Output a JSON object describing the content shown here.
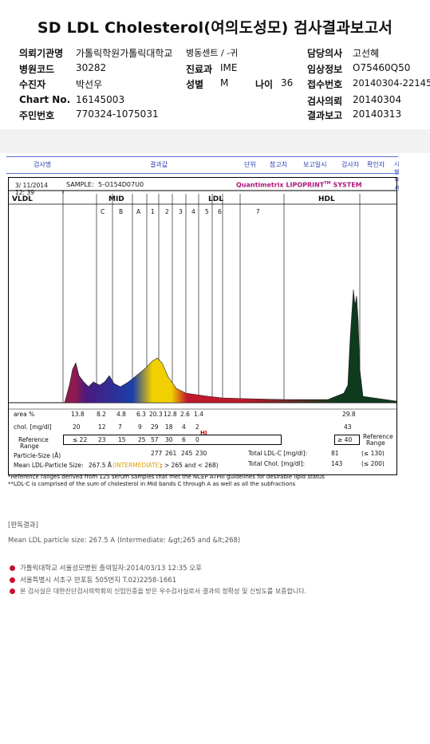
{
  "title": "SD LDL Cholesterol(여의도성모) 검사결과보고서",
  "header": {
    "left": [
      {
        "label": "의뢰기관명",
        "value": "가톨릭학원가톨릭대학교"
      },
      {
        "label": "병원코드",
        "value": "30282"
      },
      {
        "label": "수진자",
        "value": "박선우"
      },
      {
        "label": "Chart No.",
        "value": "16145003"
      },
      {
        "label": "주민번호",
        "value": "770324-1075031"
      }
    ],
    "dept": {
      "label": "병동센트 / -귀"
    },
    "clinic": {
      "label": "진료과",
      "value": "IME"
    },
    "gender": {
      "label": "성별",
      "value": "M"
    },
    "age": {
      "label": "나이",
      "value": "36"
    },
    "right": [
      {
        "label": "담당의사",
        "value": "고선혜"
      },
      {
        "label": "임상정보",
        "value": "O75460Q50"
      },
      {
        "label": "접수번호",
        "value": "20140304-22145"
      },
      {
        "label": "검사의뢰",
        "value": "20140304"
      },
      {
        "label": "결과보고",
        "value": "20140313"
      }
    ]
  },
  "report_header": [
    "검사명",
    "결과값",
    "단위",
    "참고치",
    "보고일시",
    "검사자",
    "확인자",
    "시행부서"
  ],
  "sample": {
    "date": "3/ 11/2014",
    "time": "12: 39",
    "sample_label": "SAMPLE:",
    "sample_id": "5-O154D07U0",
    "brand": "Quantimetrix LIPOPRINT",
    "brand_sup": "TM",
    "brand_tail": " SYSTEM"
  },
  "band_groups": {
    "vldl": "VLDL",
    "mid": "MID",
    "ldl": "LDL",
    "hdl": "HDL"
  },
  "band_labels": [
    "C",
    "B",
    "A",
    "1",
    "2",
    "3",
    "4",
    "5",
    "6",
    "7"
  ],
  "rows": {
    "area": {
      "label": "area %",
      "values": [
        "13.8",
        "8.2",
        "4.8",
        "6.3",
        "20.3",
        "12.8",
        "2.6",
        "1.4",
        "29.8"
      ]
    },
    "chol": {
      "label": "chol. [mg/dl]",
      "values": [
        "20",
        "12",
        "7",
        "9",
        "29",
        "18",
        "4",
        "2",
        "43"
      ],
      "flag": "HI"
    },
    "ref": {
      "label1": "Reference",
      "label2": "Range",
      "values": [
        "≤ 22",
        "23",
        "15",
        "25",
        "57",
        "30",
        "6",
        "0",
        "≥ 40"
      ],
      "right1": "Reference",
      "right2": "Range"
    },
    "particle": {
      "label": "Particle-Size (Å)",
      "values": [
        "277",
        "261",
        "245",
        "230"
      ]
    },
    "mean": {
      "label": "Mean LDL-Particle Size:",
      "value": "267.5 Å",
      "note": "(INTERMEDIATE)",
      "tail": "; > 265 and < 268)"
    },
    "total_ldl": {
      "label": "Total LDL-C [mg/dl]:",
      "value": "81",
      "range": "(≤ 130)"
    },
    "total_chol": {
      "label": "Total Chol. [mg/dl]:",
      "value": "143",
      "range": "(≤ 200)"
    }
  },
  "footnotes": [
    "*Reference ranges derived from 125 serum samples that met the NCEP ATPIII guidelines for desirable lipid status",
    "**LDL-C is comprised of the sum of cholesterol in Mid bands C through A as well as all the subfractions"
  ],
  "judgment": {
    "title": "[판독결과]",
    "text": "Mean LDL particle size: 267.5 A (Intermediate: &gt;265 and &lt;268)"
  },
  "bullets": [
    "가톨릭대학교 서울성모병원        출력일자:2014/03/13 12:35 오후",
    "서울특별시 서초구 반포동 505번지 T.02)2258-1661",
    "본 검사실은 대한진단검사의학회의 신임인증을 받은 우수검사실로서 결과의 정확성 및 신빙도를 보증합니다."
  ],
  "colors": {
    "vldl": "#8e1a4e",
    "mid_c": "#4a1a80",
    "mid_a": "#1a3fa8",
    "ldl1": "#f0d000",
    "ldl2": "#c0182c",
    "hdl": "#0e3a1e"
  }
}
